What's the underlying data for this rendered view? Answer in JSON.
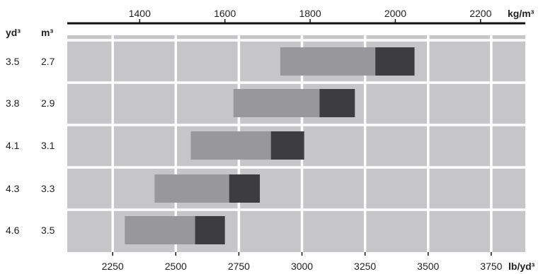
{
  "chart_data": {
    "type": "bar",
    "title": "",
    "top_axis": {
      "unit_label": "kg/m³",
      "ticks": [
        1400,
        1600,
        1800,
        2000,
        2200
      ],
      "range": [
        1230,
        2305
      ]
    },
    "bottom_axis": {
      "unit_label": "lb/yd³",
      "ticks": [
        2250,
        2500,
        2750,
        3000,
        3250,
        3500,
        3750
      ],
      "range": [
        2070,
        3885
      ]
    },
    "left_axis_headers": {
      "yd3": "yd³",
      "m3": "m³"
    },
    "categories": [
      {
        "yd3": "3.5",
        "m3": "2.7"
      },
      {
        "yd3": "3.8",
        "m3": "2.9"
      },
      {
        "yd3": "4.1",
        "m3": "3.1"
      },
      {
        "yd3": "4.3",
        "m3": "3.3"
      },
      {
        "yd3": "4.6",
        "m3": "3.5"
      }
    ],
    "series": [
      {
        "values_start_kg_m3": [
          1730,
          1620,
          1520,
          1435,
          1365
        ],
        "values_end_kg_m3": [
          1953,
          1822,
          1708,
          1610,
          1530
        ],
        "color": "#98989c"
      },
      {
        "values_start_kg_m3": [
          1953,
          1822,
          1708,
          1610,
          1530
        ],
        "values_end_kg_m3": [
          2045,
          1905,
          1786,
          1682,
          1600
        ],
        "color": "#3d3d3f"
      }
    ],
    "grid": true,
    "plot_background": "#c6c6c8",
    "grid_color": "#ffffff"
  }
}
